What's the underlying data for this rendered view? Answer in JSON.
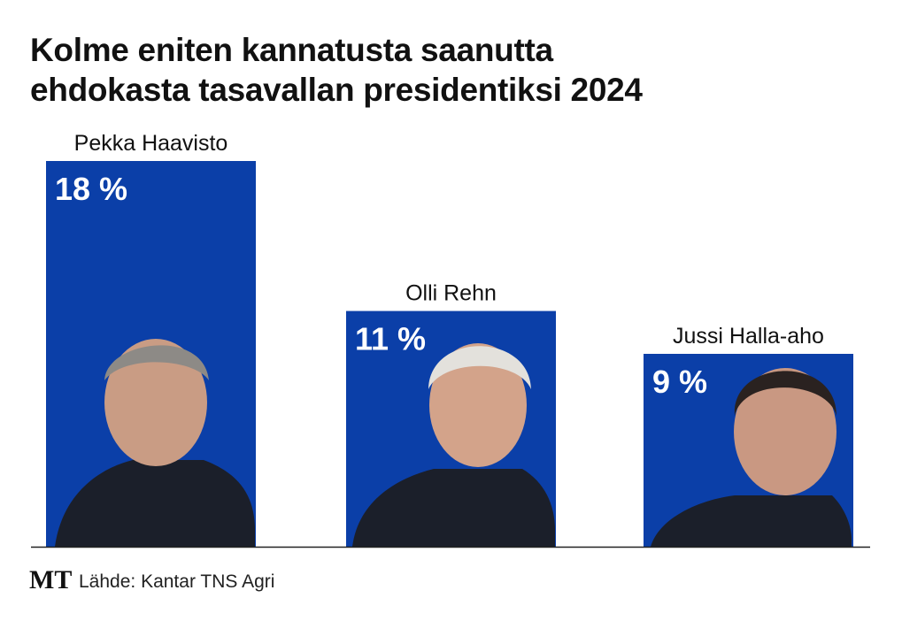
{
  "chart_data": {
    "type": "bar",
    "title": "Kolme eniten kannatusta saanutta\nehdokasta tasavallan presidentiksi 2024",
    "categories": [
      "Pekka Haavisto",
      "Olli Rehn",
      "Jussi Halla-aho"
    ],
    "values": [
      18,
      11,
      9
    ],
    "value_labels": [
      "18 %",
      "11 %",
      "9 %"
    ],
    "color": "#0b3fa8",
    "logo": "MT",
    "source": "Lähde: Kantar TNS Agri"
  }
}
